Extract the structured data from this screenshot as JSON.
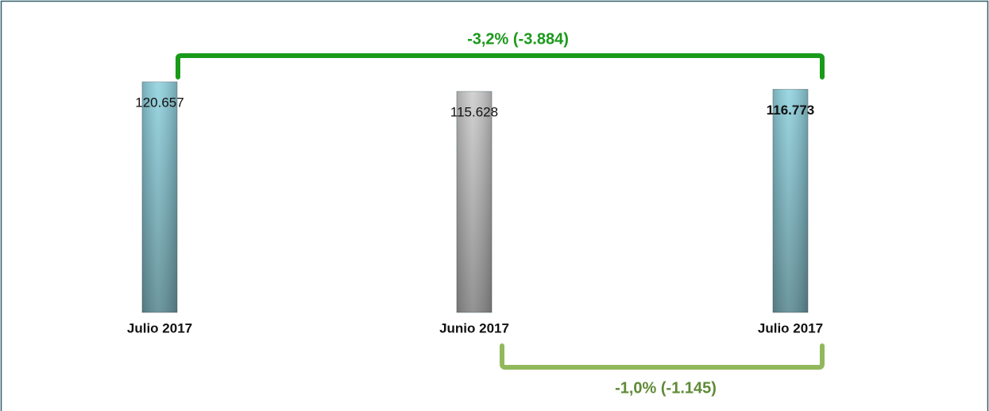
{
  "chart_data": {
    "type": "bar",
    "categories": [
      "Julio 2017",
      "Junio 2017",
      "Julio 2017"
    ],
    "values": [
      120657,
      115628,
      116773
    ],
    "value_labels": [
      "120.657",
      "115.628",
      "116.773"
    ],
    "colors": [
      "#8fd2df",
      "#cccccc",
      "#8fd2df"
    ],
    "ylim": [
      0,
      140000
    ],
    "annotations": [
      "-3,2% (-3.884)",
      "-1,0% (-1.145)"
    ]
  }
}
